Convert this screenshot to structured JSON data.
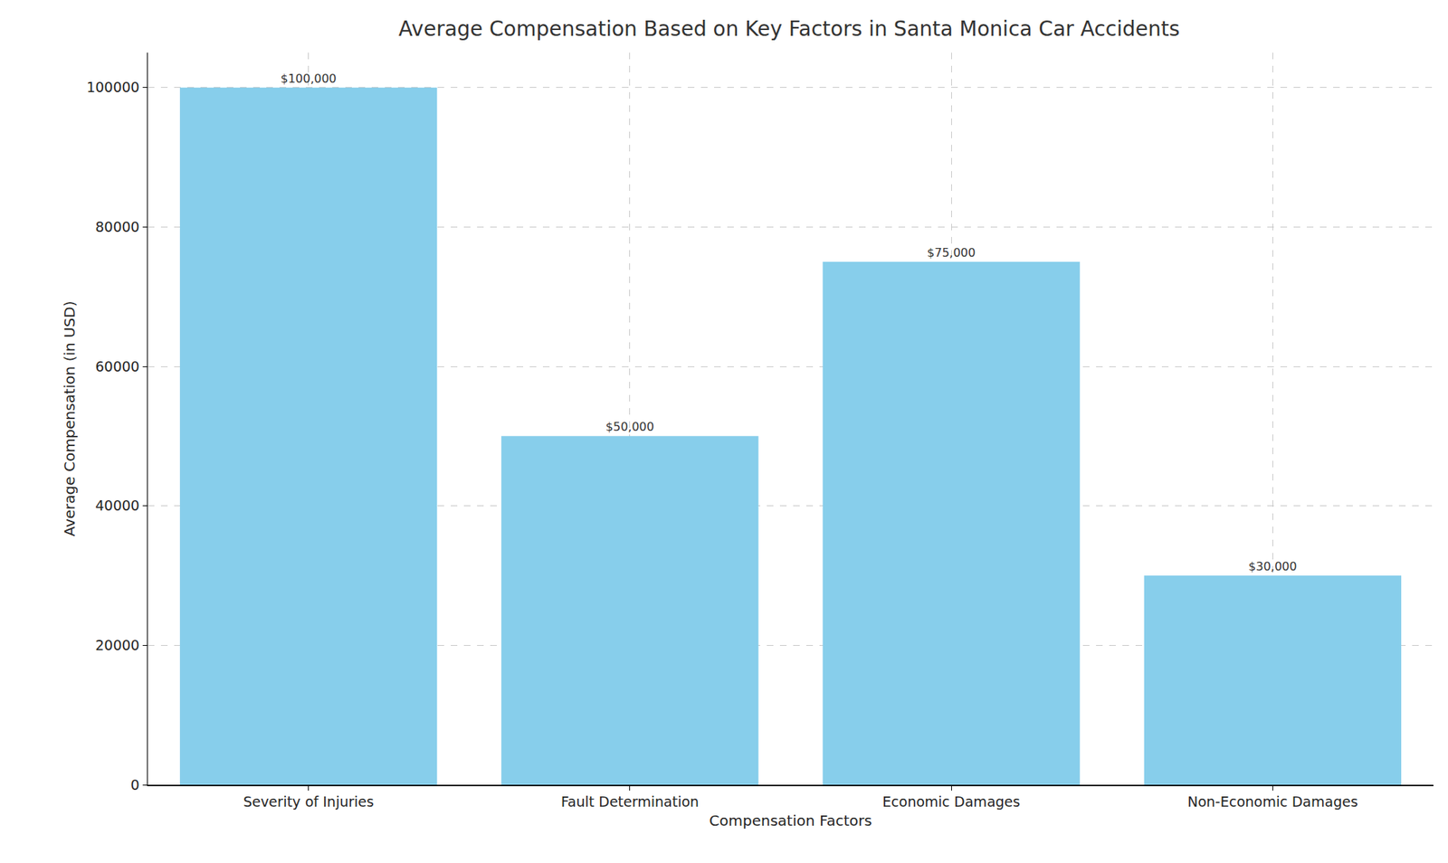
{
  "chart_data": {
    "type": "bar",
    "title": "Average Compensation Based on Key Factors in Santa Monica Car Accidents",
    "x_label": "Compensation Factors",
    "y_label": "Average Compensation (in USD)",
    "categories": [
      "Severity of Injuries",
      "Fault Determination",
      "Economic Damages",
      "Non-Economic Damages"
    ],
    "values": [
      100000,
      50000,
      75000,
      30000
    ],
    "value_labels": [
      "$100,000",
      "$50,000",
      "$75,000",
      "$30,000"
    ],
    "data_labels": true,
    "color": "#87ceeb",
    "ylim": [
      0,
      105000
    ],
    "yticks": [
      0,
      20000,
      40000,
      60000,
      80000,
      100000
    ],
    "grid": true
  }
}
